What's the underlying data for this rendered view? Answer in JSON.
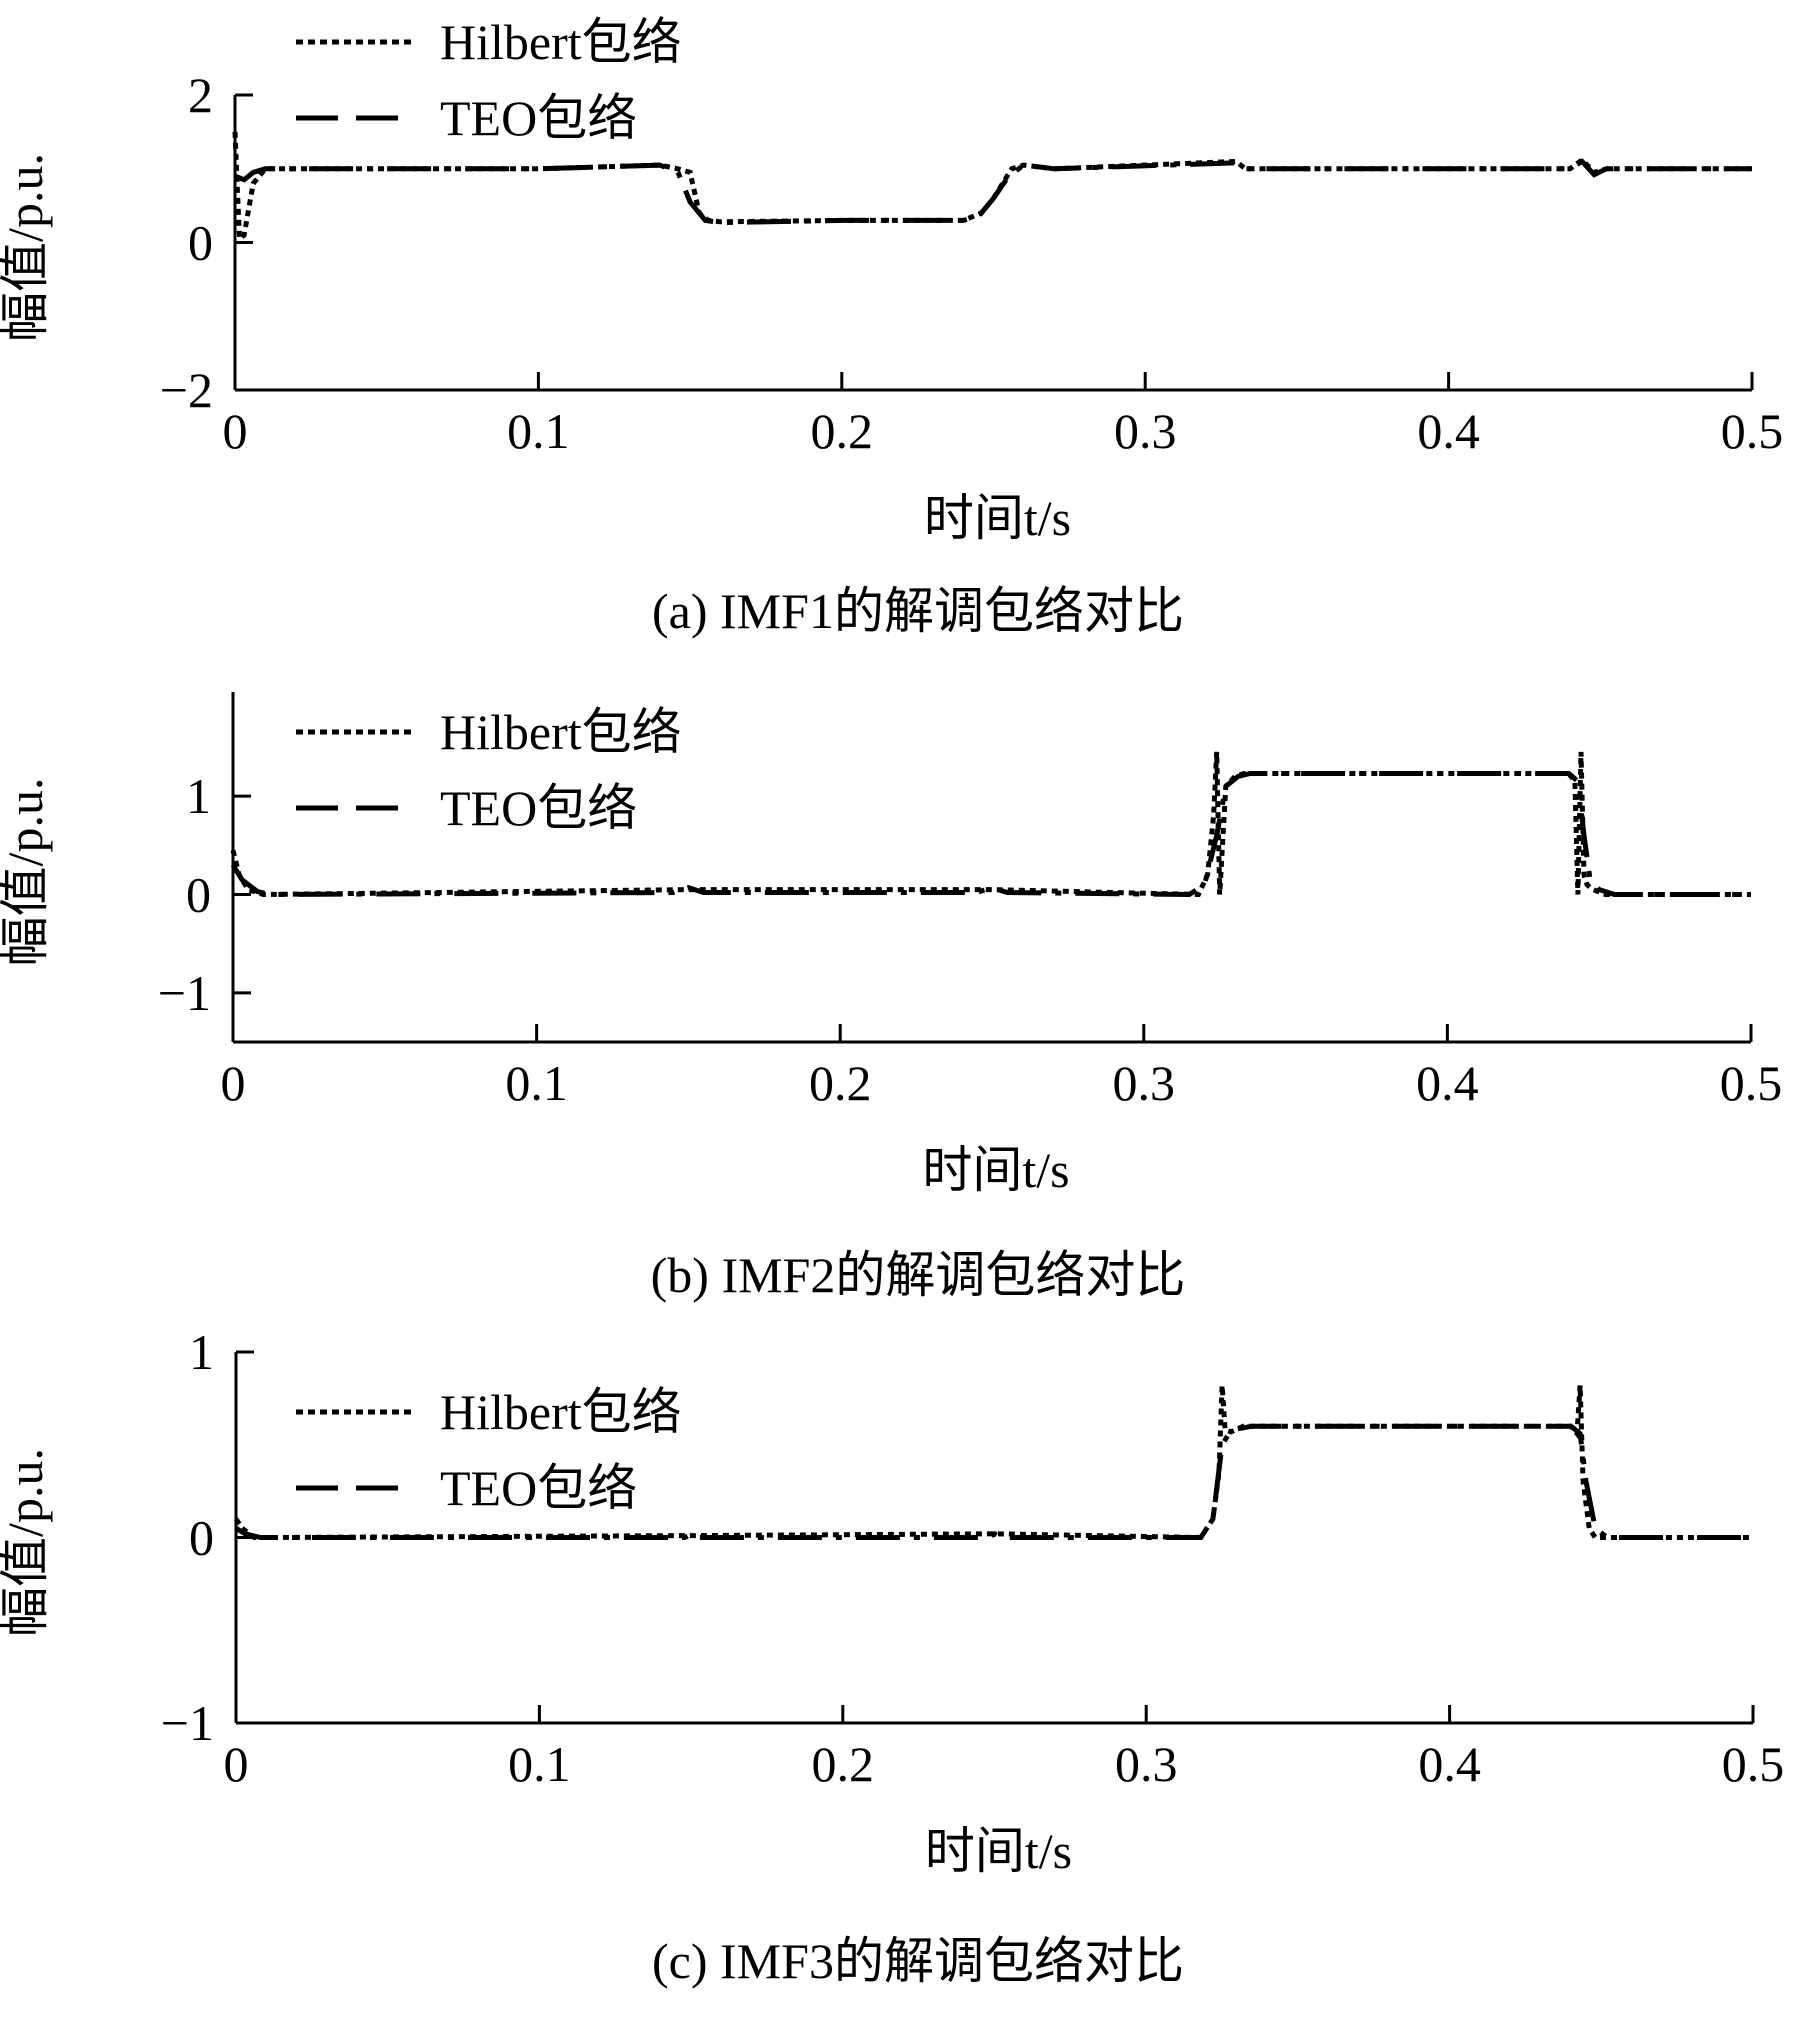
{
  "chart_data": [
    {
      "type": "line",
      "caption": "(a) IMF1的解调包络对比",
      "xlabel": "时间t/s",
      "ylabel": "幅值/p.u.",
      "xlim": [
        0,
        0.5
      ],
      "ylim": [
        -2,
        2
      ],
      "xticks": [
        0,
        0.1,
        0.2,
        0.3,
        0.4,
        0.5
      ],
      "xtick_labels": [
        "0",
        "0.1",
        "0.2",
        "0.3",
        "0.4",
        "0.5"
      ],
      "yticks": [
        -2,
        0,
        2
      ],
      "ytick_labels": [
        "−2",
        "0",
        "2"
      ],
      "legend_position": "top-left",
      "series": [
        {
          "name": "Hilbert包络",
          "style": "dotted",
          "x": [
            0,
            0.0008,
            0.0015,
            0.003,
            0.006,
            0.01,
            0.02,
            0.1,
            0.14,
            0.146,
            0.15,
            0.153,
            0.156,
            0.16,
            0.2,
            0.24,
            0.246,
            0.25,
            0.253,
            0.256,
            0.26,
            0.27,
            0.33,
            0.333,
            0.337,
            0.44,
            0.444,
            0.448,
            0.452,
            0.5
          ],
          "y": [
            1.5,
            0.7,
            0.05,
            0.1,
            0.8,
            1.0,
            1.0,
            1.0,
            1.05,
            1.0,
            0.95,
            0.4,
            0.3,
            0.28,
            0.3,
            0.3,
            0.4,
            0.6,
            0.8,
            1.0,
            1.05,
            1.0,
            1.1,
            1.0,
            1.0,
            1.0,
            1.12,
            0.95,
            1.0,
            1.0
          ]
        },
        {
          "name": "TEO包络",
          "style": "dash-dot",
          "x": [
            0,
            0.003,
            0.006,
            0.01,
            0.02,
            0.1,
            0.14,
            0.146,
            0.15,
            0.155,
            0.16,
            0.2,
            0.24,
            0.245,
            0.25,
            0.255,
            0.26,
            0.27,
            0.33,
            0.333,
            0.337,
            0.44,
            0.444,
            0.448,
            0.452,
            0.5
          ],
          "y": [
            0.9,
            0.85,
            0.95,
            1.0,
            1.0,
            1.0,
            1.05,
            0.95,
            0.55,
            0.3,
            0.27,
            0.3,
            0.3,
            0.35,
            0.6,
            0.9,
            1.05,
            1.0,
            1.08,
            1.0,
            1.0,
            1.0,
            1.1,
            0.92,
            1.0,
            1.0
          ]
        }
      ]
    },
    {
      "type": "line",
      "caption": "(b) IMF2的解调包络对比",
      "xlabel": "时间t/s",
      "ylabel": "幅值/p.u.",
      "xlim": [
        0,
        0.5
      ],
      "ylim": [
        -1.5,
        1.5
      ],
      "xticks": [
        0,
        0.1,
        0.2,
        0.3,
        0.4,
        0.5
      ],
      "xtick_labels": [
        "0",
        "0.1",
        "0.2",
        "0.3",
        "0.4",
        "0.5"
      ],
      "yticks": [
        -1,
        0,
        1
      ],
      "ytick_labels": [
        "−1",
        "0",
        "1"
      ],
      "legend_position": "top-left",
      "series": [
        {
          "name": "Hilbert包络",
          "style": "dotted",
          "x": [
            0,
            0.002,
            0.005,
            0.01,
            0.15,
            0.25,
            0.318,
            0.321,
            0.323,
            0.324,
            0.325,
            0.327,
            0.33,
            0.333,
            0.44,
            0.442,
            0.443,
            0.444,
            0.445,
            0.446,
            0.448,
            0.452,
            0.5
          ],
          "y": [
            0.45,
            0.2,
            0.05,
            0.0,
            0.05,
            0.05,
            0.0,
            0.2,
            0.8,
            1.45,
            0.0,
            1.1,
            1.2,
            1.23,
            1.23,
            1.15,
            0.0,
            1.45,
            0.2,
            0.1,
            0.05,
            0.0,
            0.0
          ]
        },
        {
          "name": "TEO包络",
          "style": "dash-dot",
          "x": [
            0,
            0.003,
            0.008,
            0.012,
            0.145,
            0.15,
            0.155,
            0.245,
            0.25,
            0.255,
            0.315,
            0.32,
            0.324,
            0.327,
            0.331,
            0.335,
            0.44,
            0.443,
            0.445,
            0.447,
            0.45,
            0.455,
            0.5
          ],
          "y": [
            0.3,
            0.15,
            0.03,
            0.0,
            0.02,
            0.07,
            0.02,
            0.02,
            0.07,
            0.02,
            0.0,
            0.1,
            0.6,
            1.1,
            1.2,
            1.23,
            1.23,
            1.15,
            0.6,
            0.15,
            0.05,
            0.0,
            0.0
          ]
        }
      ]
    },
    {
      "type": "line",
      "caption": "(c) IMF3的解调包络对比",
      "xlabel": "时间t/s",
      "ylabel": "幅值/p.u.",
      "xlim": [
        0,
        0.5
      ],
      "ylim": [
        -1,
        1
      ],
      "xticks": [
        0,
        0.1,
        0.2,
        0.3,
        0.4,
        0.5
      ],
      "xtick_labels": [
        "0",
        "0.1",
        "0.2",
        "0.3",
        "0.4",
        "0.5"
      ],
      "yticks": [
        -1,
        0,
        1
      ],
      "ytick_labels": [
        "−1",
        "0",
        "1"
      ],
      "legend_position": "top-left",
      "series": [
        {
          "name": "Hilbert包络",
          "style": "dotted",
          "x": [
            0,
            0.002,
            0.006,
            0.01,
            0.15,
            0.25,
            0.318,
            0.322,
            0.324,
            0.325,
            0.326,
            0.328,
            0.332,
            0.44,
            0.442,
            0.443,
            0.444,
            0.446,
            0.448,
            0.452,
            0.5
          ],
          "y": [
            0.1,
            0.05,
            0.0,
            0.0,
            0.01,
            0.02,
            0.0,
            0.1,
            0.35,
            0.82,
            0.58,
            0.57,
            0.6,
            0.6,
            0.56,
            0.82,
            0.3,
            0.05,
            0.0,
            0.0,
            0.0
          ]
        },
        {
          "name": "TEO包络",
          "style": "dash-dot",
          "x": [
            0,
            0.003,
            0.008,
            0.148,
            0.15,
            0.152,
            0.248,
            0.25,
            0.252,
            0.318,
            0.322,
            0.325,
            0.328,
            0.335,
            0.44,
            0.443,
            0.445,
            0.448,
            0.452,
            0.5
          ],
          "y": [
            0.05,
            0.02,
            0.0,
            0.0,
            0.02,
            0.0,
            0.0,
            0.02,
            0.0,
            0.0,
            0.1,
            0.5,
            0.58,
            0.6,
            0.6,
            0.56,
            0.3,
            0.05,
            0.0,
            0.0
          ]
        }
      ]
    }
  ]
}
